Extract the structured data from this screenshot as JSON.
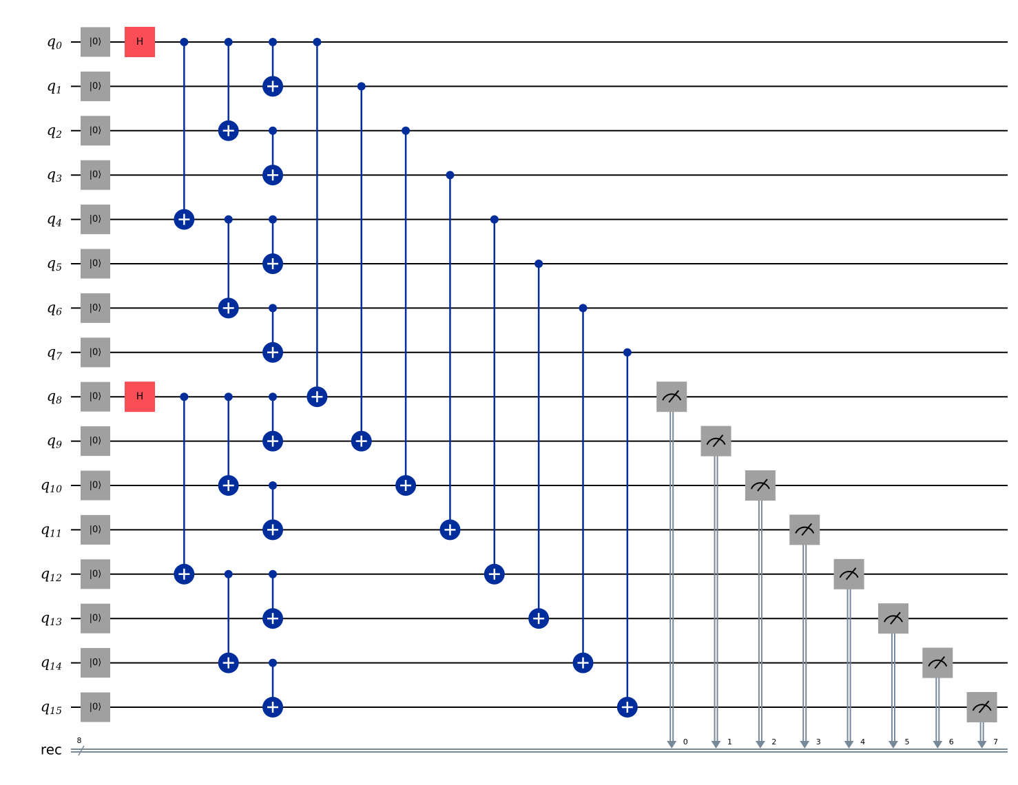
{
  "qubits": [
    {
      "name": "q",
      "index": "0",
      "init": "|0⟩"
    },
    {
      "name": "q",
      "index": "1",
      "init": "|0⟩"
    },
    {
      "name": "q",
      "index": "2",
      "init": "|0⟩"
    },
    {
      "name": "q",
      "index": "3",
      "init": "|0⟩"
    },
    {
      "name": "q",
      "index": "4",
      "init": "|0⟩"
    },
    {
      "name": "q",
      "index": "5",
      "init": "|0⟩"
    },
    {
      "name": "q",
      "index": "6",
      "init": "|0⟩"
    },
    {
      "name": "q",
      "index": "7",
      "init": "|0⟩"
    },
    {
      "name": "q",
      "index": "8",
      "init": "|0⟩"
    },
    {
      "name": "q",
      "index": "9",
      "init": "|0⟩"
    },
    {
      "name": "q",
      "index": "10",
      "init": "|0⟩"
    },
    {
      "name": "q",
      "index": "11",
      "init": "|0⟩"
    },
    {
      "name": "q",
      "index": "12",
      "init": "|0⟩"
    },
    {
      "name": "q",
      "index": "13",
      "init": "|0⟩"
    },
    {
      "name": "q",
      "index": "14",
      "init": "|0⟩"
    },
    {
      "name": "q",
      "index": "15",
      "init": "|0⟩"
    }
  ],
  "register": {
    "name": "rec",
    "size": "8"
  },
  "moments": [
    [
      {
        "gate": "h",
        "label": "H",
        "qubit": 0
      },
      {
        "gate": "h",
        "label": "H",
        "qubit": 8
      }
    ],
    [
      {
        "gate": "cx",
        "control": 0,
        "target": 4
      },
      {
        "gate": "cx",
        "control": 8,
        "target": 12
      }
    ],
    [
      {
        "gate": "cx",
        "control": 0,
        "target": 2
      },
      {
        "gate": "cx",
        "control": 4,
        "target": 6
      },
      {
        "gate": "cx",
        "control": 8,
        "target": 10
      },
      {
        "gate": "cx",
        "control": 12,
        "target": 14
      }
    ],
    [
      {
        "gate": "cx",
        "control": 0,
        "target": 1
      },
      {
        "gate": "cx",
        "control": 2,
        "target": 3
      },
      {
        "gate": "cx",
        "control": 4,
        "target": 5
      },
      {
        "gate": "cx",
        "control": 6,
        "target": 7
      },
      {
        "gate": "cx",
        "control": 8,
        "target": 9
      },
      {
        "gate": "cx",
        "control": 10,
        "target": 11
      },
      {
        "gate": "cx",
        "control": 12,
        "target": 13
      },
      {
        "gate": "cx",
        "control": 14,
        "target": 15
      }
    ],
    [
      {
        "gate": "cx",
        "control": 0,
        "target": 8
      }
    ],
    [
      {
        "gate": "cx",
        "control": 1,
        "target": 9
      }
    ],
    [
      {
        "gate": "cx",
        "control": 2,
        "target": 10
      }
    ],
    [
      {
        "gate": "cx",
        "control": 3,
        "target": 11
      }
    ],
    [
      {
        "gate": "cx",
        "control": 4,
        "target": 12
      }
    ],
    [
      {
        "gate": "cx",
        "control": 5,
        "target": 13
      }
    ],
    [
      {
        "gate": "cx",
        "control": 6,
        "target": 14
      }
    ],
    [
      {
        "gate": "cx",
        "control": 7,
        "target": 15
      }
    ],
    [
      {
        "gate": "measure",
        "qubit": 8,
        "clbit": "0"
      }
    ],
    [
      {
        "gate": "measure",
        "qubit": 9,
        "clbit": "1"
      }
    ],
    [
      {
        "gate": "measure",
        "qubit": 10,
        "clbit": "2"
      }
    ],
    [
      {
        "gate": "measure",
        "qubit": 11,
        "clbit": "3"
      }
    ],
    [
      {
        "gate": "measure",
        "qubit": 12,
        "clbit": "4"
      }
    ],
    [
      {
        "gate": "measure",
        "qubit": 13,
        "clbit": "5"
      }
    ],
    [
      {
        "gate": "measure",
        "qubit": 14,
        "clbit": "6"
      }
    ],
    [
      {
        "gate": "measure",
        "qubit": 15,
        "clbit": "7"
      }
    ]
  ]
}
